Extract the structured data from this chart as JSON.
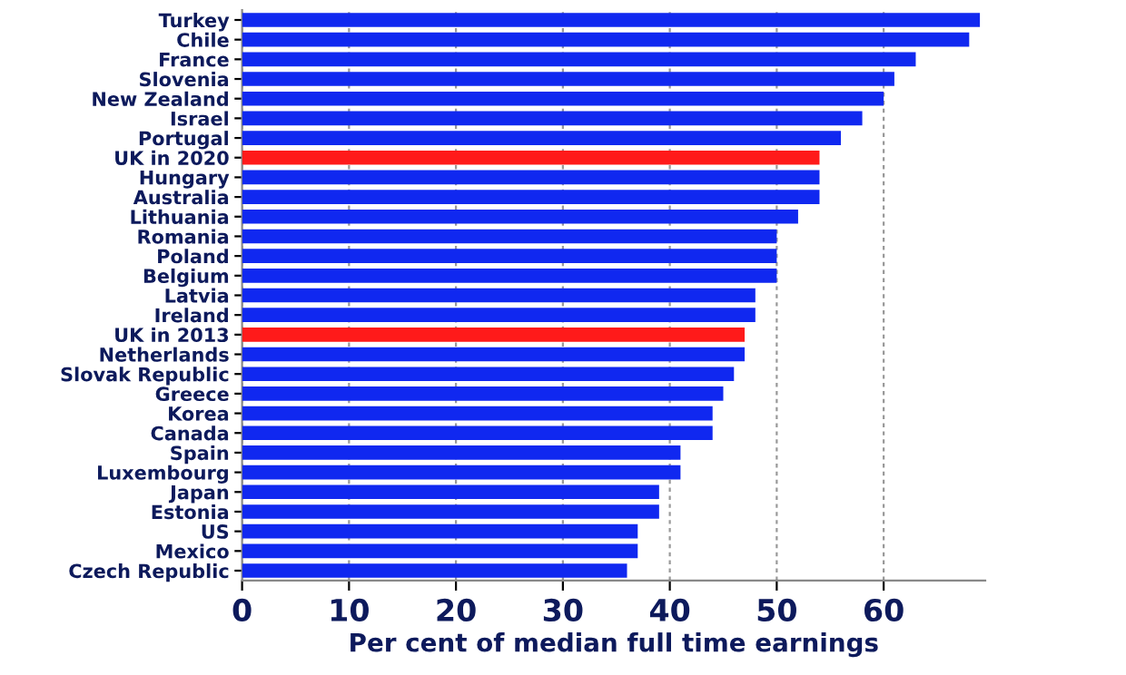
{
  "chart_data": {
    "type": "bar",
    "orientation": "horizontal",
    "xlabel": "Per cent of median full time earnings",
    "categories": [
      "Turkey",
      "Chile",
      "France",
      "Slovenia",
      "New Zealand",
      "Israel",
      "Portugal",
      "UK in 2020",
      "Hungary",
      "Australia",
      "Lithuania",
      "Romania",
      "Poland",
      "Belgium",
      "Latvia",
      "Ireland",
      "UK in 2013",
      "Netherlands",
      "Slovak Republic",
      "Greece",
      "Korea",
      "Canada",
      "Spain",
      "Luxembourg",
      "Japan",
      "Estonia",
      "US",
      "Mexico",
      "Czech Republic"
    ],
    "values": [
      69,
      68,
      63,
      61,
      60,
      58,
      56,
      54,
      54,
      54,
      52,
      50,
      50,
      50,
      48,
      48,
      47,
      47,
      46,
      45,
      44,
      44,
      41,
      41,
      39,
      39,
      37,
      37,
      36
    ],
    "colors": [
      "#1028f0",
      "#1028f0",
      "#1028f0",
      "#1028f0",
      "#1028f0",
      "#1028f0",
      "#1028f0",
      "#ff1a1a",
      "#1028f0",
      "#1028f0",
      "#1028f0",
      "#1028f0",
      "#1028f0",
      "#1028f0",
      "#1028f0",
      "#1028f0",
      "#ff1a1a",
      "#1028f0",
      "#1028f0",
      "#1028f0",
      "#1028f0",
      "#1028f0",
      "#1028f0",
      "#1028f0",
      "#1028f0",
      "#1028f0",
      "#1028f0",
      "#1028f0",
      "#1028f0"
    ],
    "xlim": [
      0,
      69.5
    ],
    "xticks": [
      0,
      10,
      20,
      30,
      40,
      50,
      60
    ],
    "grid": "x",
    "legend": false
  }
}
